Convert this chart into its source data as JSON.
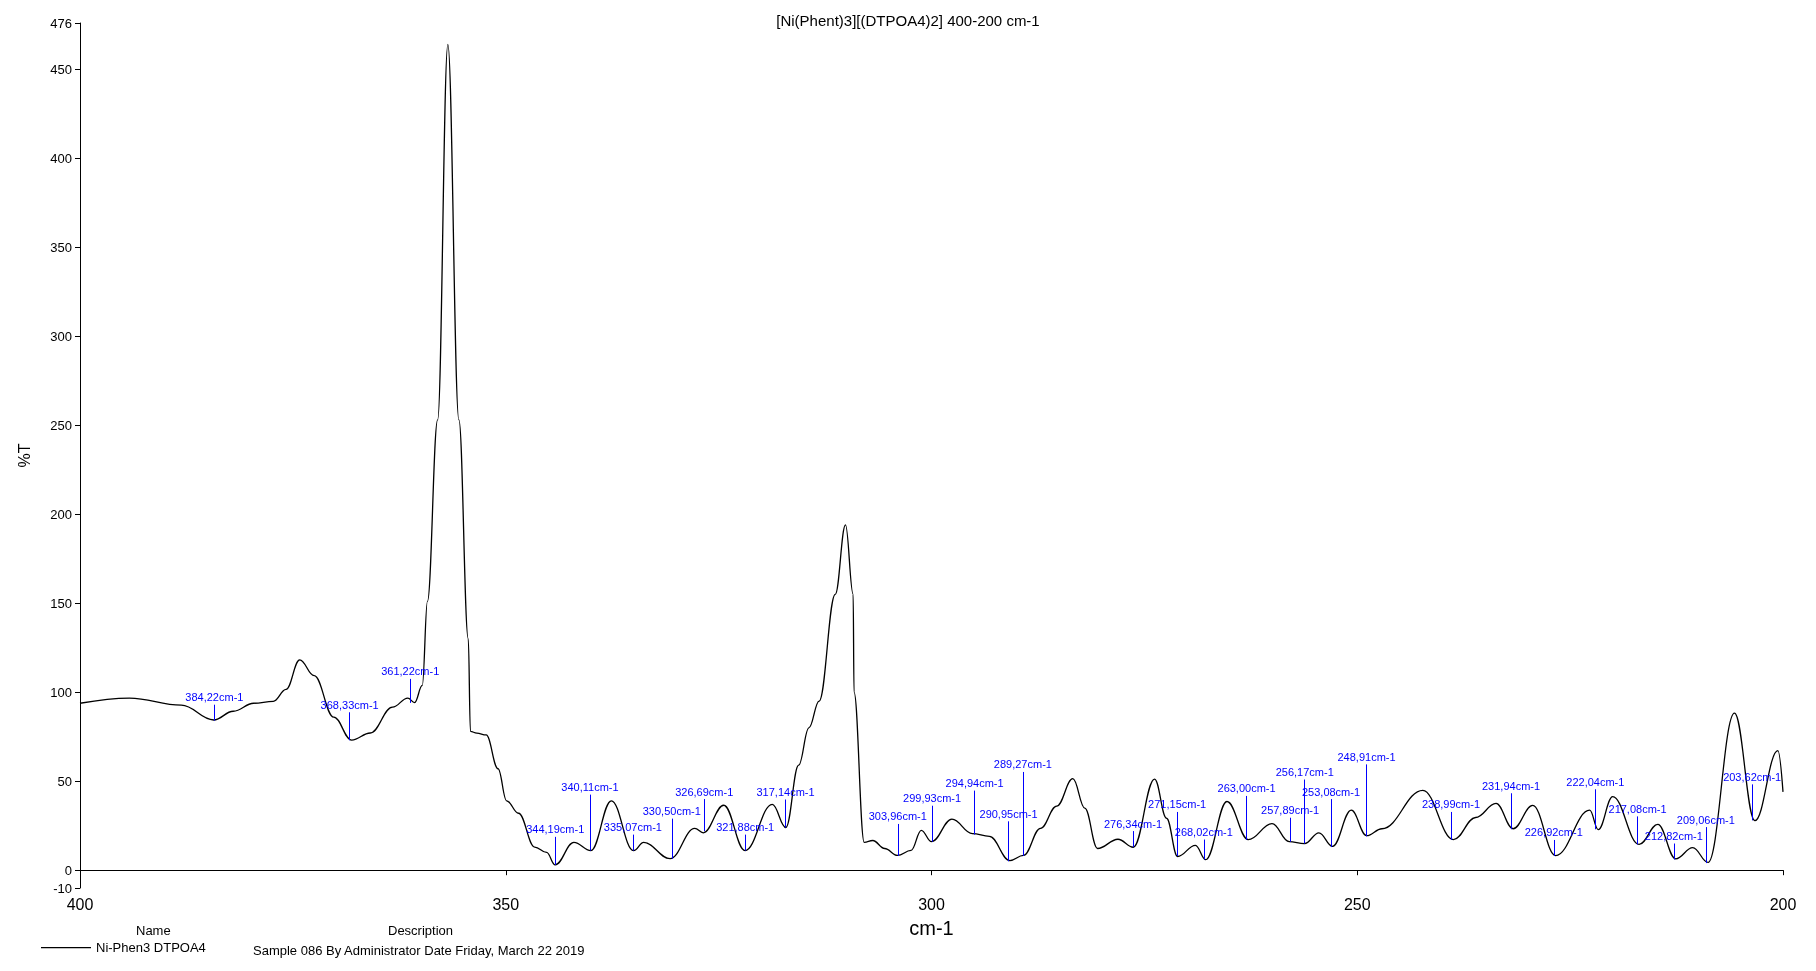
{
  "chart_data": {
    "type": "line",
    "title": "[Ni(Phent)3][(DTPOA4)2] 400-200 cm-1",
    "xlabel": "cm-1",
    "ylabel": "%T",
    "legend_title": "Name",
    "legend": "bottom left",
    "grid": false,
    "marker": "none",
    "line_style": "solid",
    "xlim": [
      400,
      200
    ],
    "xticks": [
      400,
      350,
      300,
      250,
      200
    ],
    "ylim": [
      -10,
      476
    ],
    "yticks": [
      -10,
      0,
      50,
      100,
      150,
      200,
      250,
      300,
      350,
      400,
      450,
      476
    ],
    "series": [
      {
        "name": "Ni-Phen3 DTPOA4",
        "color": "#000000",
        "x": [
          400,
          394.2,
          388.1,
          384.3,
          382,
          379.6,
          377.3,
          375.8,
          374.2,
          372.5,
          370.2,
          368.1,
          365.9,
          363.3,
          361.5,
          360.7,
          359.8,
          359.2,
          358,
          356.8,
          355.5,
          354.4,
          354.15,
          353.4,
          352.3,
          350.9,
          349.9,
          348.5,
          346.6,
          345.2,
          344.2,
          342,
          340,
          337.6,
          335,
          333.8,
          330.7,
          327.8,
          326.8,
          324.4,
          321.9,
          318.7,
          317.1,
          315.6,
          314.4,
          313.2,
          311.3,
          310.1,
          309.2,
          309.1,
          307.9,
          306.9,
          305.5,
          304,
          302.4,
          301.2,
          300,
          297.6,
          295.2,
          293.2,
          290.8,
          289.2,
          287.2,
          285.3,
          283.4,
          282,
          280.5,
          278.1,
          276.3,
          273.8,
          272.4,
          271.1,
          269,
          267.8,
          265.3,
          262.8,
          260,
          258,
          256.2,
          254.5,
          252.9,
          250.7,
          248.9,
          247.1,
          242.3,
          238.7,
          236.1,
          233.7,
          231.7,
          229.4,
          226.7,
          222.7,
          221.7,
          220,
          216.9,
          214.7,
          212.6,
          210.6,
          208.8,
          205.7,
          203.3,
          200.6,
          200
        ],
        "values": [
          93.8,
          96.7,
          92.7,
          84.4,
          89.3,
          93.8,
          94.9,
          101.6,
          118.2,
          109.3,
          86,
          73.1,
          77.1,
          91.6,
          96.7,
          94.2,
          103.8,
          151,
          253,
          464,
          253,
          130,
          78,
          77,
          76,
          57,
          39,
          32,
          13,
          10,
          3,
          15.6,
          11,
          39,
          11,
          15.6,
          6.5,
          23.5,
          21,
          36.5,
          11,
          37,
          24,
          59,
          80,
          95,
          155,
          194,
          155,
          100,
          15.6,
          16.7,
          12.2,
          8.3,
          11.1,
          22.4,
          16,
          28.7,
          20.6,
          19,
          5.4,
          8.3,
          23.5,
          36,
          51.4,
          34.9,
          12.2,
          17.4,
          12.9,
          51.2,
          29.2,
          7.7,
          14,
          5.9,
          38.6,
          17.2,
          26.2,
          16.1,
          14.9,
          21,
          13.4,
          33.7,
          19.4,
          23.3,
          44.9,
          17.2,
          29.6,
          37.5,
          23.3,
          36.4,
          8.2,
          33.7,
          22.8,
          41.3,
          14.5,
          25.8,
          6.4,
          12.7,
          4.4,
          88.2,
          27.8,
          67.2,
          44
        ]
      }
    ],
    "annotations": [
      "Description",
      "Sample 086 By Administrator Date Friday, March 22 2019",
      {
        "text": "384,22cm-1",
        "x": 384.22,
        "y": 84
      },
      {
        "text": "368,33cm-1",
        "x": 368.33,
        "y": 73
      },
      {
        "text": "361,22cm-1",
        "x": 361.22,
        "y": 94
      },
      {
        "text": "344,19cm-1",
        "x": 344.19,
        "y": 3
      },
      {
        "text": "340,11cm-1",
        "x": 340.11,
        "y": 11
      },
      {
        "text": "335,07cm-1",
        "x": 335.07,
        "y": 11
      },
      {
        "text": "330,50cm-1",
        "x": 330.5,
        "y": 6.5
      },
      {
        "text": "326,69cm-1",
        "x": 326.69,
        "y": 22
      },
      {
        "text": "321,88cm-1",
        "x": 321.88,
        "y": 11
      },
      {
        "text": "317,14cm-1",
        "x": 317.14,
        "y": 24
      },
      {
        "text": "303,96cm-1",
        "x": 303.96,
        "y": 8
      },
      {
        "text": "299,93cm-1",
        "x": 299.93,
        "y": 16
      },
      {
        "text": "294,94cm-1",
        "x": 294.94,
        "y": 20
      },
      {
        "text": "290,95cm-1",
        "x": 290.95,
        "y": 5
      },
      {
        "text": "289,27cm-1",
        "x": 289.27,
        "y": 8
      },
      {
        "text": "276,34cm-1",
        "x": 276.34,
        "y": 13
      },
      {
        "text": "271,15cm-1",
        "x": 271.15,
        "y": 8
      },
      {
        "text": "268,02cm-1",
        "x": 268.02,
        "y": 6
      },
      {
        "text": "263,00cm-1",
        "x": 263,
        "y": 17
      },
      {
        "text": "257,89cm-1",
        "x": 257.89,
        "y": 16
      },
      {
        "text": "256,17cm-1",
        "x": 256.17,
        "y": 15
      },
      {
        "text": "253,08cm-1",
        "x": 253.08,
        "y": 13
      },
      {
        "text": "248,91cm-1",
        "x": 248.91,
        "y": 19
      },
      {
        "text": "238,99cm-1",
        "x": 238.99,
        "y": 17
      },
      {
        "text": "231,94cm-1",
        "x": 231.94,
        "y": 23
      },
      {
        "text": "226,92cm-1",
        "x": 226.92,
        "y": 8
      },
      {
        "text": "222,04cm-1",
        "x": 222.04,
        "y": 23
      },
      {
        "text": "217,08cm-1",
        "x": 217.08,
        "y": 14.5
      },
      {
        "text": "212,82cm-1",
        "x": 212.82,
        "y": 6
      },
      {
        "text": "209,06cm-1",
        "x": 209.06,
        "y": 4
      },
      {
        "text": "203,62cm-1",
        "x": 203.62,
        "y": 28
      }
    ]
  }
}
